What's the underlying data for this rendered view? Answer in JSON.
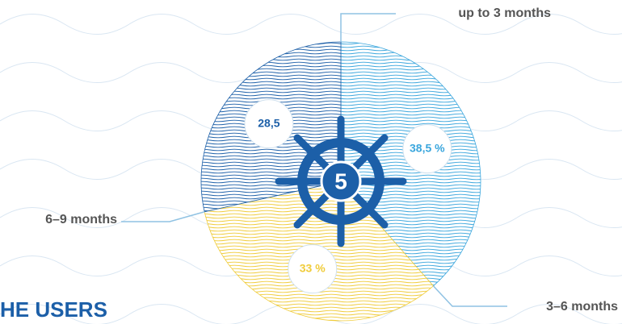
{
  "chart_data": {
    "type": "pie",
    "categories": [
      "up to 3 months",
      "3–6 months",
      "6–9 months"
    ],
    "values": [
      38.5,
      33,
      28.5
    ],
    "value_labels": [
      "38,5 %",
      "33 %",
      "28,5"
    ],
    "colors": [
      "#3aa6dd",
      "#f0cc3a",
      "#1c5fa8"
    ],
    "center_label": "5",
    "heading": "HE USERS"
  }
}
